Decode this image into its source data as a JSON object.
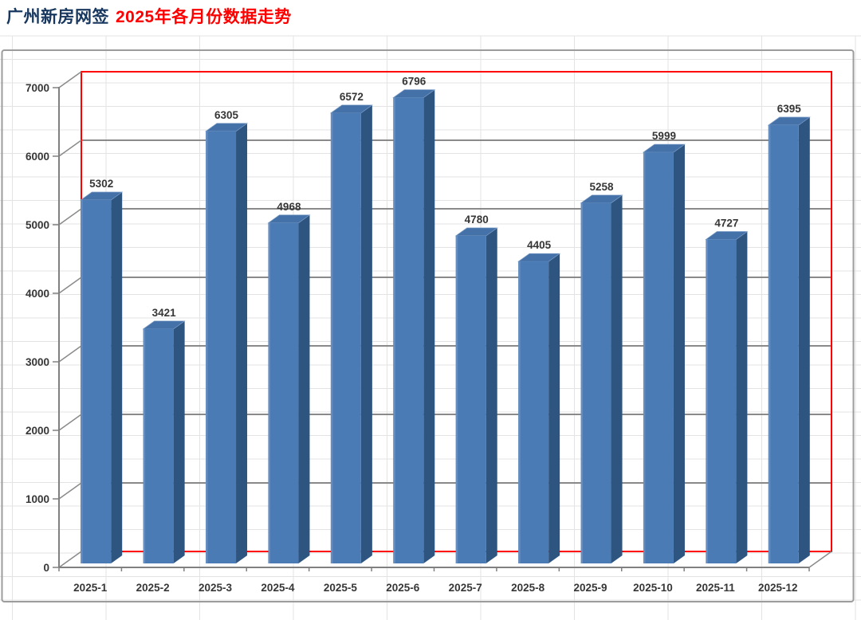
{
  "title": {
    "part1": "广州新房网签",
    "part2": "2025年各月份数据走势",
    "part1_color": "#17375e",
    "part2_color": "#fe0000"
  },
  "chart_data": {
    "type": "bar",
    "style": "3d-column",
    "title": "广州新房网签 2025年各月份数据走势",
    "categories": [
      "2025-1",
      "2025-2",
      "2025-3",
      "2025-4",
      "2025-5",
      "2025-6",
      "2025-7",
      "2025-8",
      "2025-9",
      "2025-10",
      "2025-11",
      "2025-12"
    ],
    "values": [
      5302,
      3421,
      6305,
      4968,
      6572,
      6796,
      4780,
      4405,
      5258,
      5999,
      4727,
      6395
    ],
    "data_labels": true,
    "xlabel": "",
    "ylabel": "",
    "ylim": [
      0,
      7000
    ],
    "y_ticks": [
      0,
      1000,
      2000,
      3000,
      4000,
      5000,
      6000,
      7000
    ],
    "grid": true,
    "legend": "none",
    "colors": {
      "bar_front": "#4a7bb5",
      "bar_side": "#2e5480",
      "bar_top": "#4471a8",
      "bar_highlight": "#6d92c3",
      "bar_top_edge": "#7e9ec7",
      "wall_border": "#ff0000",
      "gridline": "#7a7a7a",
      "axis": "#808080",
      "sheet_grid": "#e3e3e3",
      "chart_border": "#9c9c9c",
      "label_text": "#363636"
    }
  }
}
